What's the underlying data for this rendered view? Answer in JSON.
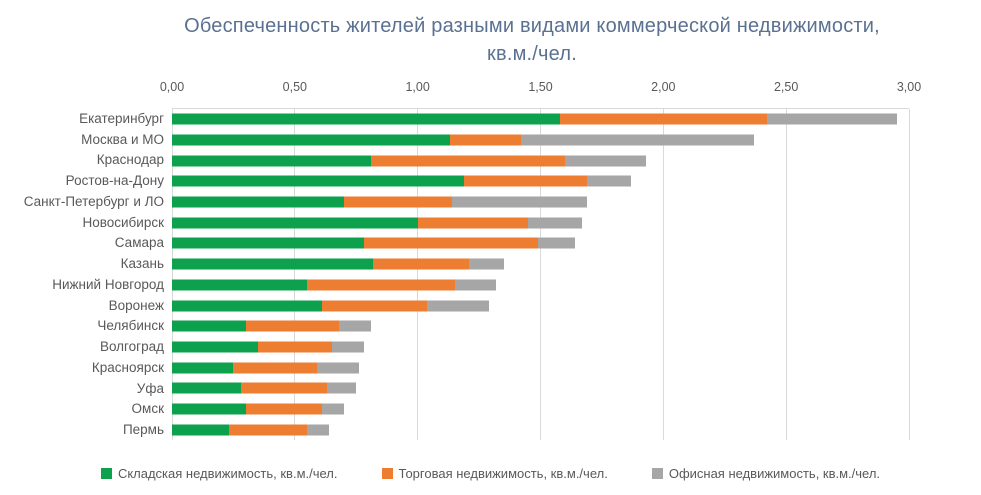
{
  "title": {
    "line1": "Обеспеченность жителей разными видами коммерческой недвижимости,",
    "line2": "кв.м./чел."
  },
  "colors": {
    "warehouse_green": "#0EA14D",
    "retail_orange": "#ED7D31",
    "office_gray": "#A6A6A6",
    "gridline": "#D9D9D9",
    "axis_text": "#595959",
    "title_text": "#5B7191"
  },
  "chart_data": {
    "type": "bar",
    "orientation": "horizontal",
    "stacked": true,
    "grid": true,
    "legend_position": "bottom",
    "title": "Обеспеченность жителей разными видами коммерческой недвижимости, кв.м./чел.",
    "xlabel": "",
    "ylabel": "",
    "xlim": [
      0,
      3
    ],
    "x_ticks": [
      "0,00",
      "0,50",
      "1,00",
      "1,50",
      "2,00",
      "2,50",
      "3,00"
    ],
    "categories": [
      "Екатеринбург",
      "Москва и МО",
      "Краснодар",
      "Ростов-на-Дону",
      "Санкт-Петербург и ЛО",
      "Новосибирск",
      "Самара",
      "Казань",
      "Нижний Новгород",
      "Воронеж",
      "Челябинск",
      "Волгоград",
      "Красноярск",
      "Уфа",
      "Омск",
      "Пермь"
    ],
    "series": [
      {
        "name": "Складская недвижимость, кв.м./чел.",
        "color": "#0EA14D",
        "values": [
          1.58,
          1.13,
          0.81,
          1.19,
          0.7,
          1.0,
          0.78,
          0.82,
          0.55,
          0.61,
          0.3,
          0.35,
          0.25,
          0.28,
          0.3,
          0.23
        ]
      },
      {
        "name": "Торговая недвижимость, кв.м./чел.",
        "color": "#ED7D31",
        "values": [
          0.84,
          0.29,
          0.79,
          0.5,
          0.44,
          0.45,
          0.71,
          0.39,
          0.6,
          0.43,
          0.38,
          0.3,
          0.34,
          0.35,
          0.31,
          0.32
        ]
      },
      {
        "name": "Офисная недвижимость, кв.м./чел.",
        "color": "#A6A6A6",
        "values": [
          0.53,
          0.95,
          0.33,
          0.18,
          0.55,
          0.22,
          0.15,
          0.14,
          0.17,
          0.25,
          0.13,
          0.13,
          0.17,
          0.12,
          0.09,
          0.09
        ]
      }
    ]
  }
}
